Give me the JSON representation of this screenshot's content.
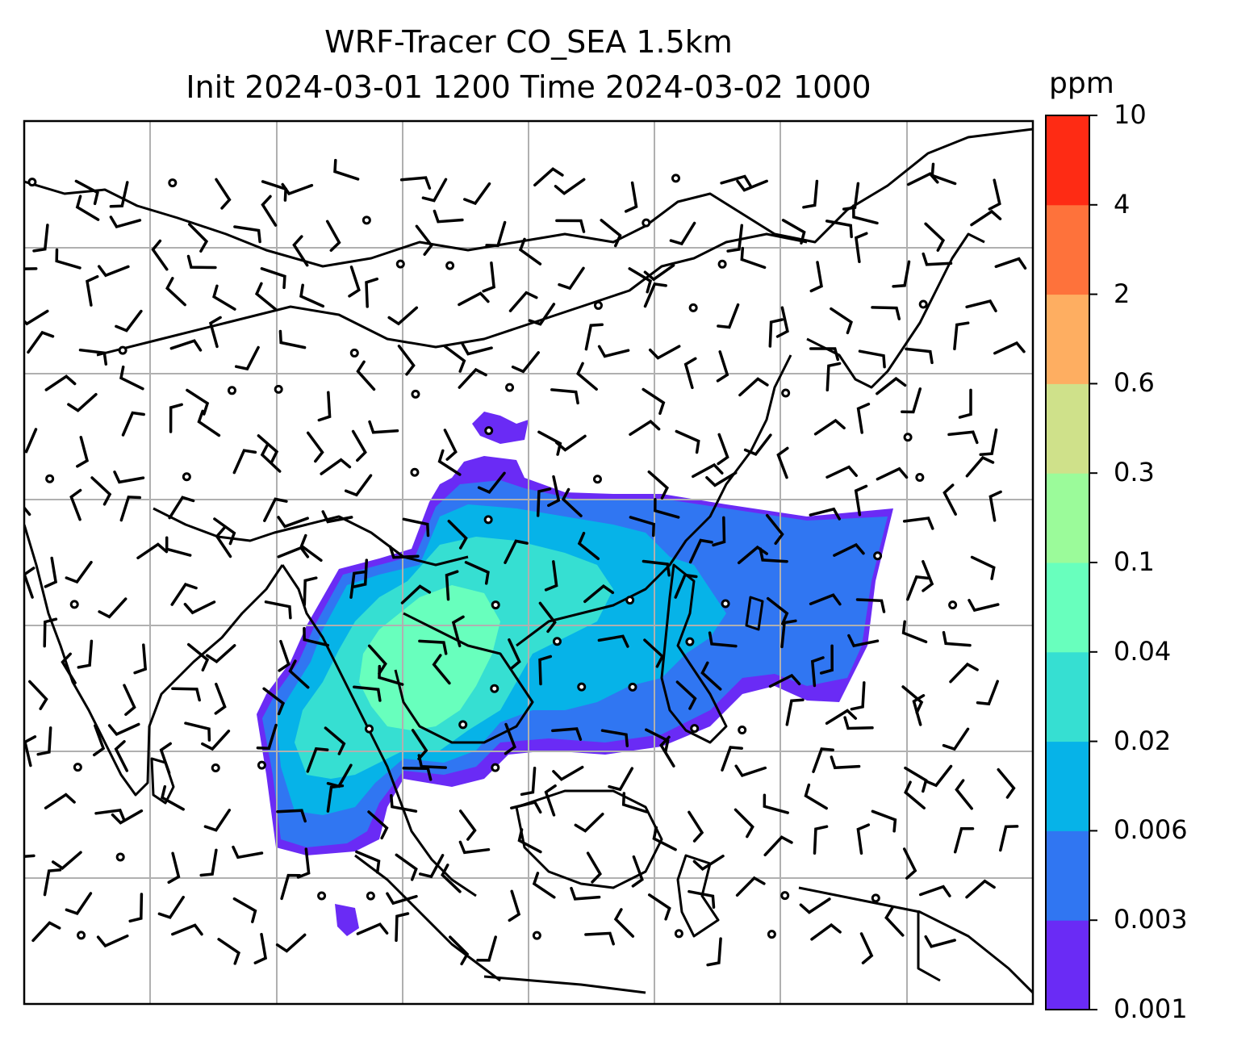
{
  "title": {
    "line1": "WRF-Tracer CO_SEA 1.5km",
    "line2": "Init 2024-03-01 1200 Time 2024-03-02 1000"
  },
  "colorbar": {
    "unit": "ppm",
    "levels": [
      "0.001",
      "0.003",
      "0.006",
      "0.02",
      "0.04",
      "0.1",
      "0.3",
      "0.6",
      "2",
      "4",
      "10"
    ],
    "colors": [
      "#6a2bf5",
      "#3076f2",
      "#06b3e8",
      "#36dfd2",
      "#68ffbd",
      "#9bfb9a",
      "#cfe18a",
      "#feae61",
      "#fe723b",
      "#fe2b14"
    ]
  },
  "map": {
    "grid": true,
    "gridlines_x": 7,
    "gridlines_y": 6,
    "field": "CO tracer concentration",
    "overlay": "wind barbs"
  }
}
